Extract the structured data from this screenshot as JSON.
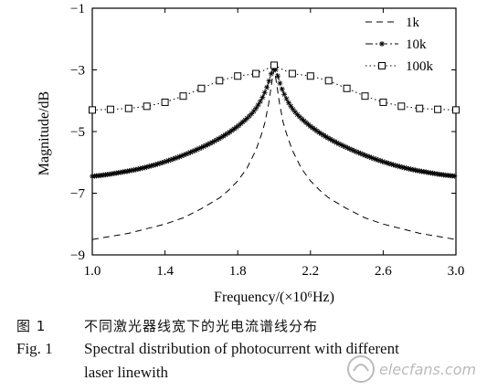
{
  "chart_data": {
    "type": "line",
    "xlabel": "Frequency/(×10⁶Hz)",
    "ylabel": "Magnitude/dB",
    "xlim": [
      1.0,
      3.0
    ],
    "ylim": [
      -9,
      -1
    ],
    "xticks": [
      "1.0",
      "1.4",
      "1.8",
      "2.2",
      "2.6",
      "3.0"
    ],
    "yticks": [
      "−1",
      "−3",
      "−5",
      "−7",
      "−9"
    ],
    "legend_position": "top-right",
    "grid": false,
    "series": [
      {
        "name": "1k",
        "style": "dashed",
        "marker": "none",
        "x": [
          1.0,
          1.1,
          1.2,
          1.3,
          1.4,
          1.5,
          1.6,
          1.7,
          1.75,
          1.8,
          1.85,
          1.9,
          1.93,
          1.95,
          1.97,
          1.98,
          1.99,
          2.0,
          2.01,
          2.02,
          2.03,
          2.05,
          2.07,
          2.1,
          2.15,
          2.2,
          2.25,
          2.3,
          2.4,
          2.5,
          2.6,
          2.7,
          2.8,
          2.9,
          3.0
        ],
        "values": [
          -8.5,
          -8.4,
          -8.3,
          -8.15,
          -8.0,
          -7.8,
          -7.5,
          -7.15,
          -6.9,
          -6.6,
          -6.2,
          -5.6,
          -5.1,
          -4.7,
          -4.1,
          -3.7,
          -3.3,
          -3.0,
          -3.3,
          -3.7,
          -4.1,
          -4.7,
          -5.1,
          -5.6,
          -6.2,
          -6.6,
          -6.9,
          -7.15,
          -7.5,
          -7.8,
          -8.0,
          -8.15,
          -8.3,
          -8.4,
          -8.5
        ]
      },
      {
        "name": "10k",
        "style": "dashdot",
        "marker": "asterisk",
        "x": [
          1.0,
          1.05,
          1.1,
          1.15,
          1.2,
          1.25,
          1.3,
          1.35,
          1.4,
          1.45,
          1.5,
          1.55,
          1.6,
          1.65,
          1.7,
          1.75,
          1.8,
          1.85,
          1.88,
          1.9,
          1.92,
          1.94,
          1.96,
          1.97,
          1.98,
          1.99,
          2.0,
          2.01,
          2.02,
          2.03,
          2.04,
          2.06,
          2.08,
          2.1,
          2.12,
          2.15,
          2.2,
          2.25,
          2.3,
          2.35,
          2.4,
          2.45,
          2.5,
          2.55,
          2.6,
          2.65,
          2.7,
          2.75,
          2.8,
          2.85,
          2.9,
          2.95,
          3.0
        ],
        "values": [
          -6.45,
          -6.42,
          -6.38,
          -6.33,
          -6.28,
          -6.22,
          -6.15,
          -6.07,
          -5.98,
          -5.88,
          -5.77,
          -5.65,
          -5.52,
          -5.38,
          -5.22,
          -5.04,
          -4.83,
          -4.58,
          -4.4,
          -4.25,
          -4.07,
          -3.85,
          -3.57,
          -3.4,
          -3.2,
          -3.02,
          -2.9,
          -3.02,
          -3.2,
          -3.4,
          -3.57,
          -3.85,
          -4.07,
          -4.25,
          -4.4,
          -4.58,
          -4.83,
          -5.04,
          -5.22,
          -5.38,
          -5.52,
          -5.65,
          -5.77,
          -5.88,
          -5.98,
          -6.07,
          -6.15,
          -6.22,
          -6.28,
          -6.33,
          -6.38,
          -6.42,
          -6.45
        ]
      },
      {
        "name": "100k",
        "style": "dotted",
        "marker": "square",
        "x": [
          1.0,
          1.1,
          1.2,
          1.3,
          1.4,
          1.5,
          1.6,
          1.7,
          1.8,
          1.9,
          1.95,
          2.0,
          2.05,
          2.1,
          2.2,
          2.3,
          2.4,
          2.5,
          2.6,
          2.7,
          2.8,
          2.9,
          3.0
        ],
        "values": [
          -4.3,
          -4.28,
          -4.25,
          -4.18,
          -4.05,
          -3.85,
          -3.6,
          -3.35,
          -3.2,
          -3.12,
          -3.0,
          -2.85,
          -3.0,
          -3.12,
          -3.2,
          -3.35,
          -3.6,
          -3.85,
          -4.05,
          -4.18,
          -4.25,
          -4.28,
          -4.3
        ]
      }
    ]
  },
  "caption": {
    "cn_number": "图 1",
    "cn_text": "不同激光器线宽下的光电流谱线分布",
    "en_number": "Fig. 1",
    "en_text_line1": "Spectral distribution of photocurrent with different",
    "en_text_line2": "laser linewith"
  },
  "watermark": {
    "text": "elecfans.com"
  }
}
